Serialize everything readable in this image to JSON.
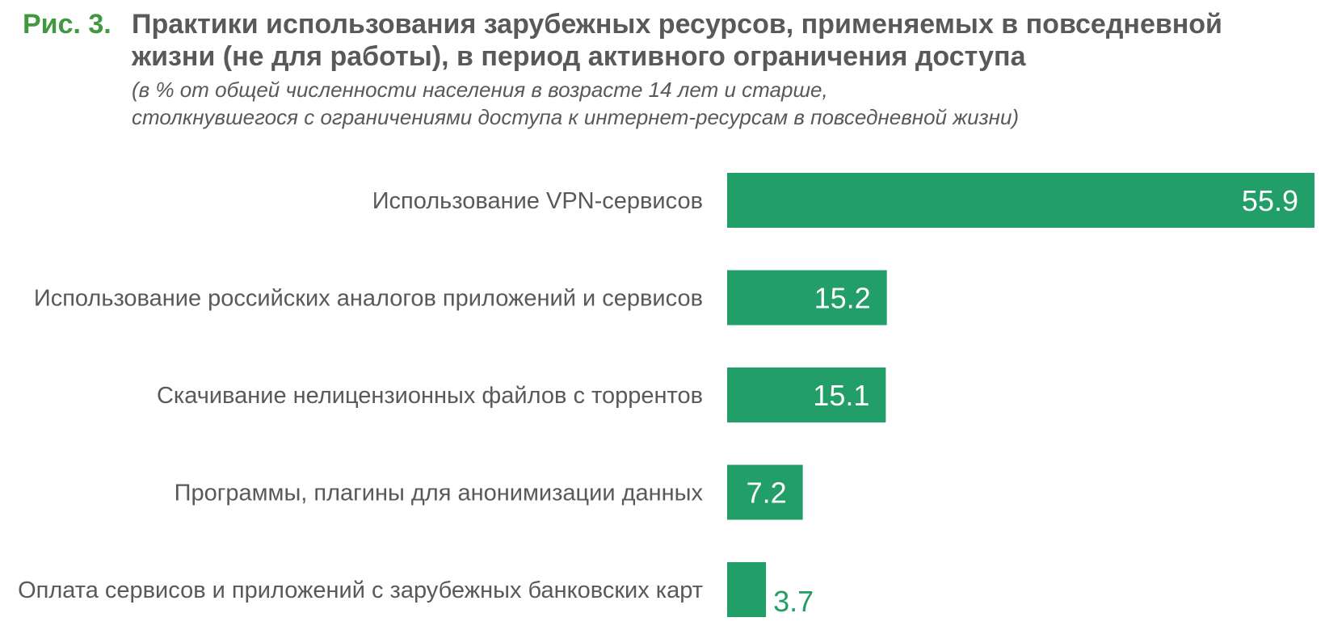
{
  "figure": {
    "label": "Рис. 3.",
    "title_lines": [
      "Практики использования зарубежных ресурсов, применяемых в повседневной",
      "жизни (не для работы), в период активного ограничения доступа"
    ],
    "subtitle_lines": [
      "(в % от общей численности населения в возрасте 14 лет и старше,",
      "столкнувшегося с ограничениями доступа к интернет-ресурсам в повседневной жизни)"
    ]
  },
  "colors": {
    "bar": "#229e68",
    "label_inside": "#ffffff",
    "label_outside": "#229e68",
    "category_text": "#595959",
    "fig_label": "#3f9a3f",
    "title_text": "#595959"
  },
  "chart_data": {
    "type": "bar",
    "orientation": "horizontal",
    "title": "Практики использования зарубежных ресурсов, применяемых в повседневной жизни (не для работы), в период активного ограничения доступа",
    "xlabel": "",
    "ylabel": "",
    "grid": false,
    "categories": [
      "Использование VPN-сервисов",
      "Использование российских аналогов приложений и сервисов",
      "Скачивание нелицензионных файлов с торрентов",
      "Программы, плагины для анонимизации данных",
      "Оплата сервисов и приложений с зарубежных банковских карт"
    ],
    "values": [
      55.9,
      15.2,
      15.1,
      7.2,
      3.7
    ],
    "value_labels": [
      "55.9",
      "15.2",
      "15.1",
      "7.2",
      "3.7"
    ],
    "xlim": [
      0,
      55.9
    ]
  }
}
